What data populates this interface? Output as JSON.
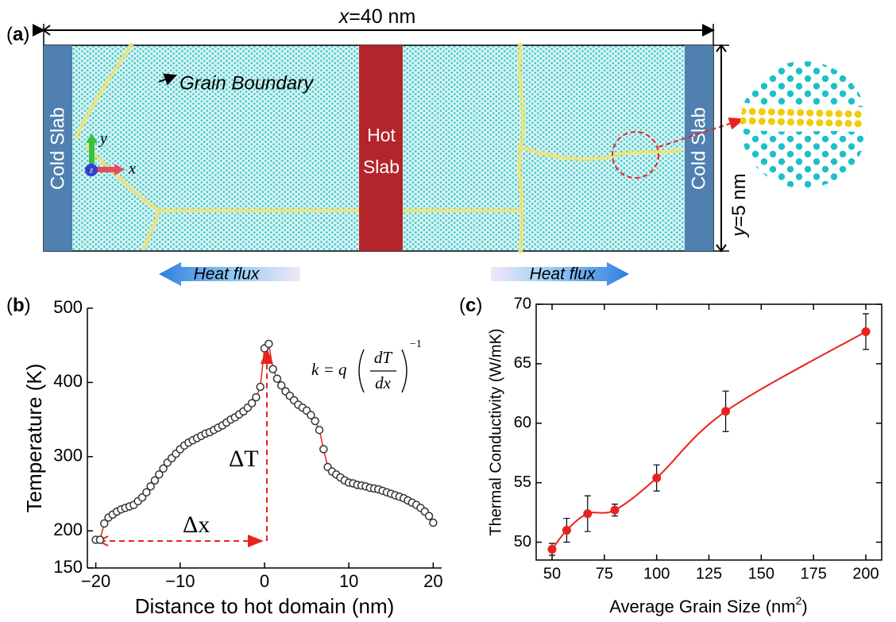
{
  "panel_a": {
    "tag": [
      "(",
      "a",
      ")"
    ],
    "width_label": [
      "x",
      "=40 nm"
    ],
    "height_label": [
      "y",
      "=5 nm"
    ],
    "grain_boundary": "Grain Boundary",
    "cold_slab_left": "Cold Slab",
    "hot_slab": [
      "Hot",
      "Slab"
    ],
    "cold_slab_right": "Cold Slab",
    "axes": [
      "y",
      "z",
      "x"
    ],
    "heat_flux_left": "Heat flux",
    "heat_flux_right": "Heat flux"
  },
  "chart_data": [
    {
      "type": "line",
      "tag": [
        "(",
        "b",
        ")"
      ],
      "xlabel": "Distance to hot domain (nm)",
      "ylabel": "Temperature (K)",
      "formula": {
        "lhs": "k = q",
        "num": "dT",
        "den": "dx",
        "exp": "−1"
      },
      "annotations": {
        "delta_x": "Δx",
        "delta_T": "ΔT"
      },
      "line_color": "#e8231e",
      "marker_fill": "#ffffff",
      "marker_edge": "#333333",
      "xlim": [
        -21,
        21
      ],
      "xticks": [
        {
          "value": -20,
          "label": "−20"
        },
        {
          "value": -10,
          "label": "−10"
        },
        0,
        10,
        20
      ],
      "ylim": [
        150,
        500
      ],
      "yticks": [
        150,
        200,
        300,
        400,
        500
      ],
      "x": [
        -20,
        -19.5,
        -19,
        -18.5,
        -18,
        -17.5,
        -17,
        -16.5,
        -16,
        -15.5,
        -15,
        -14.5,
        -14,
        -13.5,
        -13,
        -12.5,
        -12,
        -11.5,
        -11,
        -10.5,
        -10,
        -9.5,
        -9,
        -8.5,
        -8,
        -7.5,
        -7,
        -6.5,
        -6,
        -5.5,
        -5,
        -4.5,
        -4,
        -3.5,
        -3,
        -2.5,
        -2,
        -1.5,
        -1,
        -0.5,
        0,
        0.5,
        1,
        1.5,
        2,
        2.5,
        3,
        3.5,
        4,
        4.5,
        5,
        5.5,
        6,
        6.5,
        7,
        7.5,
        8,
        8.5,
        9,
        9.5,
        10,
        10.5,
        11,
        11.5,
        12,
        12.5,
        13,
        13.5,
        14,
        14.5,
        15,
        15.5,
        16,
        16.5,
        17,
        17.5,
        18,
        18.5,
        19,
        19.5,
        20
      ],
      "values": [
        188,
        188,
        210,
        218,
        222,
        226,
        229,
        231,
        233,
        235,
        240,
        245,
        252,
        260,
        268,
        276,
        284,
        292,
        298,
        304,
        310,
        315,
        319,
        322,
        325,
        328,
        331,
        333,
        336,
        339,
        342,
        346,
        350,
        353,
        357,
        361,
        366,
        372,
        380,
        394,
        446,
        452,
        418,
        405,
        396,
        388,
        382,
        376,
        370,
        366,
        362,
        356,
        348,
        336,
        310,
        286,
        280,
        276,
        272,
        268,
        265,
        264,
        262,
        261,
        260,
        258,
        257,
        256,
        254,
        252,
        250,
        248,
        246,
        244,
        241,
        238,
        235,
        231,
        226,
        220,
        211
      ]
    },
    {
      "type": "errorbar",
      "tag": [
        "(",
        "c",
        ")"
      ],
      "xlabel": [
        "Average Grain Size (nm",
        "2",
        ")"
      ],
      "ylabel": "Thermal Conductivity (W/mK)",
      "color": "#e8231e",
      "xlim": [
        42.4,
        207.6
      ],
      "xticks": [
        50,
        75,
        100,
        125,
        150,
        175,
        200
      ],
      "ylim": [
        48.5,
        70
      ],
      "yticks": [
        50,
        55,
        60,
        65,
        70
      ],
      "x": [
        50,
        57,
        67,
        80,
        100,
        133,
        200
      ],
      "values": [
        49.4,
        51.0,
        52.4,
        52.7,
        55.4,
        61.0,
        67.7
      ],
      "errors": [
        0.5,
        1.0,
        1.5,
        0.5,
        1.1,
        1.7,
        1.5
      ]
    }
  ]
}
